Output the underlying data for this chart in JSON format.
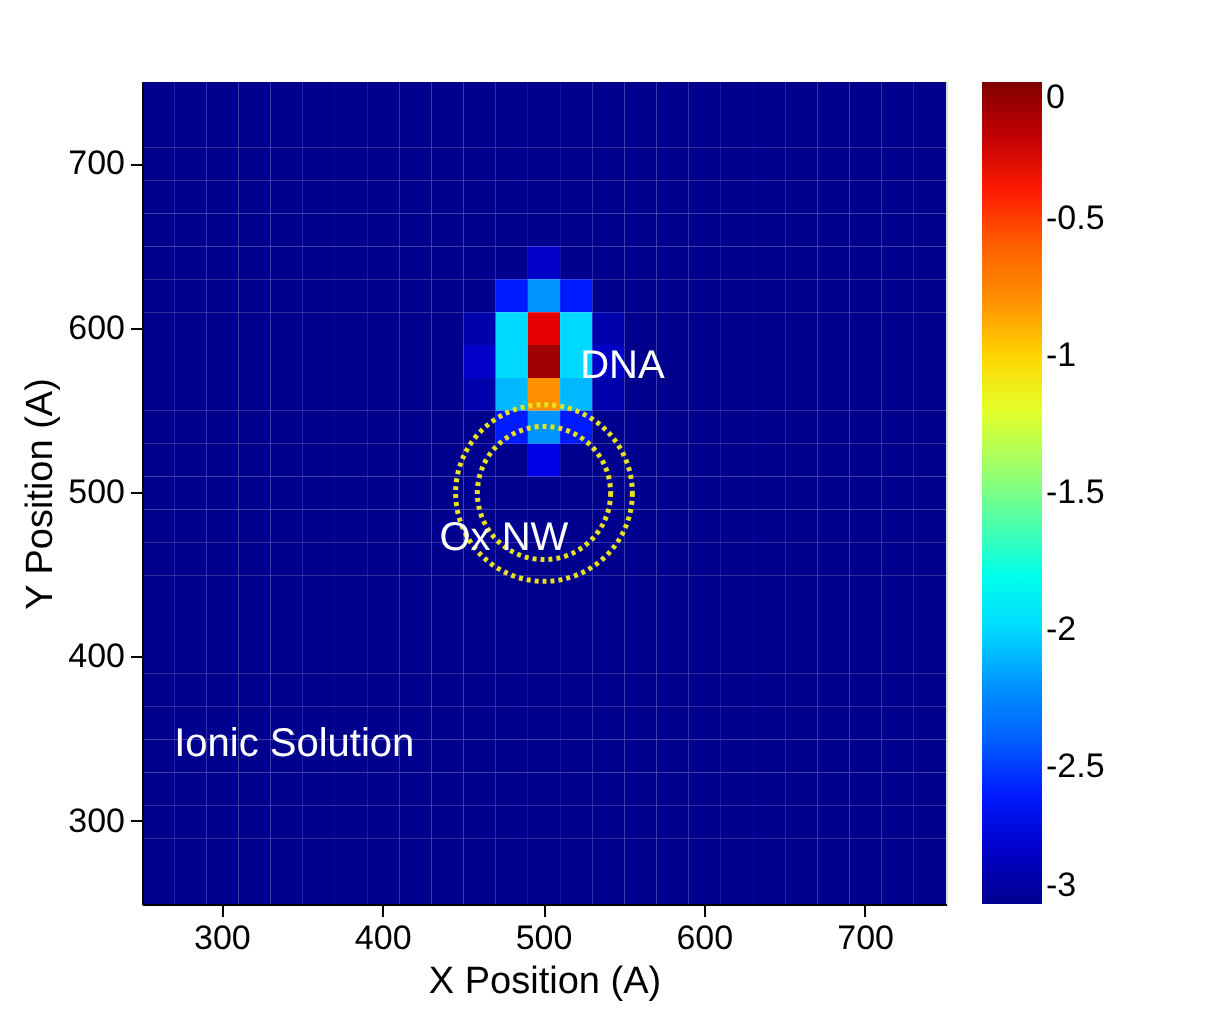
{
  "chart_data": {
    "type": "heatmap",
    "xlabel": "X Position (A)",
    "ylabel": "Y Position (A)",
    "categories": [
      null,
      null,
      "300",
      null,
      null,
      null,
      null,
      "400",
      null,
      null,
      null,
      null,
      "500",
      null,
      null,
      null,
      null,
      "600",
      null,
      null,
      null,
      null,
      "700",
      null,
      null
    ],
    "y_categories": [
      null,
      null,
      "700",
      null,
      null,
      null,
      null,
      "600",
      null,
      null,
      null,
      null,
      "500",
      null,
      null,
      null,
      null,
      "400",
      null,
      null,
      null,
      null,
      "300",
      null,
      null
    ],
    "clim": [
      -3,
      0
    ],
    "cticks": [
      -3,
      -2.5,
      -2,
      -1.5,
      -1,
      -0.5,
      0
    ],
    "cells": [
      [
        -3,
        -3,
        -3,
        -3,
        -3,
        -3,
        -3,
        -3,
        -3,
        -3,
        -3,
        -3,
        -3,
        -3,
        -3,
        -3,
        -3,
        -3,
        -3,
        -3,
        -3,
        -3,
        -3,
        -3,
        -3
      ],
      [
        -3,
        -3,
        -3,
        -3,
        -3,
        -3,
        -3,
        -3,
        -3,
        -3,
        -3,
        -3,
        -3,
        -3,
        -3,
        -3,
        -3,
        -3,
        -3,
        -3,
        -3,
        -3,
        -3,
        -3,
        -3
      ],
      [
        -3,
        -3,
        -3,
        -3,
        -3,
        -3,
        -3,
        -3,
        -3,
        -3,
        -3,
        -3,
        -3,
        -3,
        -3,
        -3,
        -3,
        -3,
        -3,
        -3,
        -3,
        -3,
        -3,
        -3,
        -3
      ],
      [
        -3,
        -3,
        -3,
        -3,
        -3,
        -3,
        -3,
        -3,
        -3,
        -3,
        -3,
        -3,
        -3,
        -3,
        -3,
        -3,
        -3,
        -3,
        -3,
        -3,
        -3,
        -3,
        -3,
        -3,
        -3
      ],
      [
        -3,
        -3,
        -3,
        -3,
        -3,
        -3,
        -3,
        -3,
        -3,
        -3,
        -3,
        -3,
        -3,
        -3,
        -3,
        -3,
        -3,
        -3,
        -3,
        -3,
        -3,
        -3,
        -3,
        -3,
        -3
      ],
      [
        -3,
        -3,
        -3,
        -3,
        -3,
        -3,
        -3,
        -3,
        -3,
        -3,
        -3,
        -3,
        -2.8,
        -3,
        -3,
        -3,
        -3,
        -3,
        -3,
        -3,
        -3,
        -3,
        -3,
        -3,
        -3
      ],
      [
        -3,
        -3,
        -3,
        -3,
        -3,
        -3,
        -3,
        -3,
        -3,
        -3,
        -3,
        -2.6,
        -2.2,
        -2.6,
        -3,
        -3,
        -3,
        -3,
        -3,
        -3,
        -3,
        -3,
        -3,
        -3,
        -3
      ],
      [
        -3,
        -3,
        -3,
        -3,
        -3,
        -3,
        -3,
        -3,
        -3,
        -3,
        -2.9,
        -2,
        -0.3,
        -2,
        -2.9,
        -3,
        -3,
        -3,
        -3,
        -3,
        -3,
        -3,
        -3,
        -3,
        -3
      ],
      [
        -3,
        -3,
        -3,
        -3,
        -3,
        -3,
        -3,
        -3,
        -3,
        -3,
        -2.8,
        -2,
        -0.1,
        -2,
        -2.8,
        -3,
        -3,
        -3,
        -3,
        -3,
        -3,
        -3,
        -3,
        -3,
        -3
      ],
      [
        -3,
        -3,
        -3,
        -3,
        -3,
        -3,
        -3,
        -3,
        -3,
        -3,
        -2.9,
        -2.1,
        -0.8,
        -2.1,
        -2.9,
        -3,
        -3,
        -3,
        -3,
        -3,
        -3,
        -3,
        -3,
        -3,
        -3
      ],
      [
        -3,
        -3,
        -3,
        -3,
        -3,
        -3,
        -3,
        -3,
        -3,
        -3,
        -3,
        -2.6,
        -2.2,
        -2.6,
        -3,
        -3,
        -3,
        -3,
        -3,
        -3,
        -3,
        -3,
        -3,
        -3,
        -3
      ],
      [
        -3,
        -3,
        -3,
        -3,
        -3,
        -3,
        -3,
        -3,
        -3,
        -3,
        -3,
        -3,
        -2.7,
        -3,
        -3,
        -3,
        -3,
        -3,
        -3,
        -3,
        -3,
        -3,
        -3,
        -3,
        -3
      ],
      [
        -3,
        -3,
        -3,
        -3,
        -3,
        -3,
        -3,
        -3,
        -3,
        -3,
        -3,
        -3,
        -3,
        -3,
        -3,
        -3,
        -3,
        -3,
        -3,
        -3,
        -3,
        -3,
        -3,
        -3,
        -3
      ],
      [
        -3,
        -3,
        -3,
        -3,
        -3,
        -3,
        -3,
        -3,
        -3,
        -3,
        -3,
        -3,
        -3,
        -3,
        -3,
        -3,
        -3,
        -3,
        -3,
        -3,
        -3,
        -3,
        -3,
        -3,
        -3
      ],
      [
        -3,
        -3,
        -3,
        -3,
        -3,
        -3,
        -3,
        -3,
        -3,
        -3,
        -3,
        -3,
        -3,
        -3,
        -3,
        -3,
        -3,
        -3,
        -3,
        -3,
        -3,
        -3,
        -3,
        -3,
        -3
      ],
      [
        -3,
        -3,
        -3,
        -3,
        -3,
        -3,
        -3,
        -3,
        -3,
        -3,
        -3,
        -3,
        -3,
        -3,
        -3,
        -3,
        -3,
        -3,
        -3,
        -3,
        -3,
        -3,
        -3,
        -3,
        -3
      ],
      [
        -3,
        -3,
        -3,
        -3,
        -3,
        -3,
        -3,
        -3,
        -3,
        -3,
        -3,
        -3,
        -3,
        -3,
        -3,
        -3,
        -3,
        -3,
        -3,
        -3,
        -3,
        -3,
        -3,
        -3,
        -3
      ],
      [
        -3,
        -3,
        -3,
        -3,
        -3,
        -3,
        -3,
        -3,
        -3,
        -3,
        -3,
        -3,
        -3,
        -3,
        -3,
        -3,
        -3,
        -3,
        -3,
        -3,
        -3,
        -3,
        -3,
        -3,
        -3
      ],
      [
        -3,
        -3,
        -3,
        -3,
        -3,
        -3,
        -3,
        -3,
        -3,
        -3,
        -3,
        -3,
        -3,
        -3,
        -3,
        -3,
        -3,
        -3,
        -3,
        -3,
        -3,
        -3,
        -3,
        -3,
        -3
      ],
      [
        -3,
        -3,
        -3,
        -3,
        -3,
        -3,
        -3,
        -3,
        -3,
        -3,
        -3,
        -3,
        -3,
        -3,
        -3,
        -3,
        -3,
        -3,
        -3,
        -3,
        -3,
        -3,
        -3,
        -3,
        -3
      ],
      [
        -3,
        -3,
        -3,
        -3,
        -3,
        -3,
        -3,
        -3,
        -3,
        -3,
        -3,
        -3,
        -3,
        -3,
        -3,
        -3,
        -3,
        -3,
        -3,
        -3,
        -3,
        -3,
        -3,
        -3,
        -3
      ],
      [
        -3,
        -3,
        -3,
        -3,
        -3,
        -3,
        -3,
        -3,
        -3,
        -3,
        -3,
        -3,
        -3,
        -3,
        -3,
        -3,
        -3,
        -3,
        -3,
        -3,
        -3,
        -3,
        -3,
        -3,
        -3
      ],
      [
        -3,
        -3,
        -3,
        -3,
        -3,
        -3,
        -3,
        -3,
        -3,
        -3,
        -3,
        -3,
        -3,
        -3,
        -3,
        -3,
        -3,
        -3,
        -3,
        -3,
        -3,
        -3,
        -3,
        -3,
        -3
      ],
      [
        -3,
        -3,
        -3,
        -3,
        -3,
        -3,
        -3,
        -3,
        -3,
        -3,
        -3,
        -3,
        -3,
        -3,
        -3,
        -3,
        -3,
        -3,
        -3,
        -3,
        -3,
        -3,
        -3,
        -3,
        -3
      ],
      [
        -3,
        -3,
        -3,
        -3,
        -3,
        -3,
        -3,
        -3,
        -3,
        -3,
        -3,
        -3,
        -3,
        -3,
        -3,
        -3,
        -3,
        -3,
        -3,
        -3,
        -3,
        -3,
        -3,
        -3,
        -3
      ]
    ],
    "annotations": [
      "DNA",
      "Ox NW",
      "Ionic Solution"
    ]
  }
}
